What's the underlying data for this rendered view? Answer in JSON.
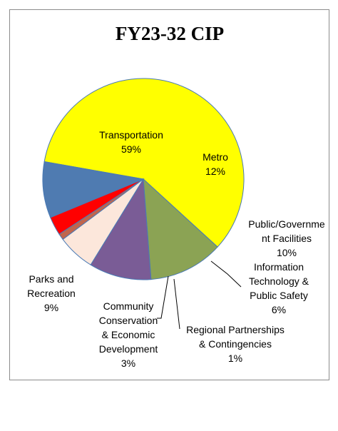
{
  "chart_data": {
    "type": "pie",
    "title": "FY23-32 CIP",
    "slices": [
      {
        "label_lines": [
          "Transportation"
        ],
        "value_text": "59%",
        "value": 59,
        "color": "#ffff00"
      },
      {
        "label_lines": [
          "Metro"
        ],
        "value_text": "12%",
        "value": 12,
        "color": "#8ba354"
      },
      {
        "label_lines": [
          "Public/Governme",
          "nt Facilities"
        ],
        "value_text": "10%",
        "value": 10,
        "color": "#7a5c96"
      },
      {
        "label_lines": [
          "Information",
          "Technology &",
          "Public Safety"
        ],
        "value_text": "6%",
        "value": 6,
        "color": "#fce7db"
      },
      {
        "label_lines": [
          "Regional Partnerships",
          "& Contingencies"
        ],
        "value_text": "1%",
        "value": 1,
        "color": "#c0654d"
      },
      {
        "label_lines": [
          "Community",
          "Conservation",
          "& Economic",
          "Development"
        ],
        "value_text": "3%",
        "value": 3,
        "color": "#ff0000"
      },
      {
        "label_lines": [
          "Parks and",
          "Recreation"
        ],
        "value_text": "9%",
        "value": 9,
        "color": "#4f7bb1"
      }
    ],
    "slice_border_color": "#4a7ab5",
    "legend": "none"
  }
}
